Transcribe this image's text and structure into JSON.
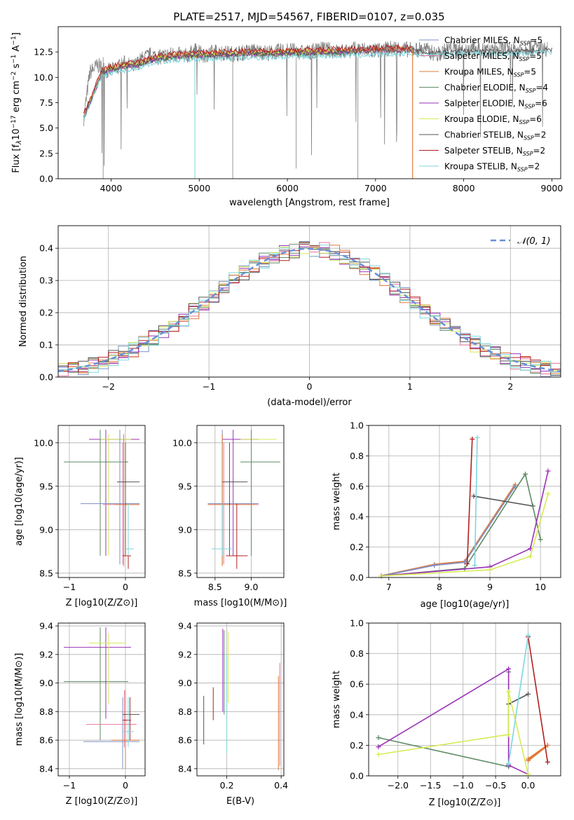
{
  "figure": {
    "title": "PLATE=2517, MJD=54567, FIBERID=0107, z=0.035"
  },
  "chart_data": [
    {
      "type": "line",
      "title": "PLATE=2517, MJD=54567, FIBERID=0107, z=0.035",
      "xlabel": "wavelength [Angstrom, rest frame]",
      "ylabel": "Flux [f_λ 10^-17 erg cm^-2 s^-1 A^-1]",
      "xlim": [
        3400,
        9100
      ],
      "ylim": [
        0,
        15
      ],
      "xticks": [
        "4000",
        "5000",
        "6000",
        "7000",
        "8000",
        "9000"
      ],
      "yticks": [
        "0.0",
        "2.5",
        "5.0",
        "7.5",
        "10.0",
        "12.5"
      ],
      "legend_position": "top-right",
      "data_spectrum": {
        "name": "",
        "x": [
          3690,
          3760,
          3850,
          3950,
          4050,
          4150,
          4250,
          4350,
          4450,
          4550,
          4700,
          4850,
          4950,
          5050,
          5200,
          5400,
          5600,
          5800,
          6000,
          6200,
          6400,
          6600,
          6800,
          7000,
          7200,
          7400,
          7550,
          7700,
          7850,
          8000,
          8150,
          8300,
          8450,
          8600,
          8800,
          8950
        ],
        "y": [
          6.0,
          10.5,
          11.2,
          10.6,
          10.8,
          11.4,
          11.0,
          11.8,
          12.2,
          12.0,
          12.3,
          12.1,
          12.6,
          12.2,
          12.5,
          12.3,
          12.6,
          12.4,
          12.7,
          12.4,
          12.8,
          12.5,
          12.8,
          12.6,
          12.9,
          12.7,
          12.8,
          12.2,
          12.9,
          12.6,
          12.9,
          12.5,
          12.9,
          12.7,
          13.0,
          12.8
        ]
      },
      "series": [
        {
          "name": "Chabrier MILES, N_SSP=5",
          "color": "#7b90c6",
          "x": [
            3690,
            3900,
            4100,
            4300,
            4500,
            4800,
            5100,
            5500,
            6000,
            6500,
            7000,
            7400
          ],
          "y": [
            6.1,
            10.5,
            11.0,
            11.2,
            11.8,
            12.1,
            12.2,
            12.3,
            12.4,
            12.5,
            12.6,
            12.7
          ]
        },
        {
          "name": "Salpeter MILES, N_SSP=5",
          "color": "#e6789e",
          "x": [
            3690,
            3900,
            4100,
            4300,
            4500,
            4800,
            5100,
            5500,
            6000,
            6500,
            7000,
            7400
          ],
          "y": [
            6.1,
            10.5,
            11.0,
            11.2,
            11.8,
            12.1,
            12.2,
            12.3,
            12.4,
            12.5,
            12.6,
            12.7
          ]
        },
        {
          "name": "Kroupa MILES, N_SSP=5",
          "color": "#e07b39",
          "x": [
            3690,
            3900,
            4100,
            4300,
            4500,
            4800,
            5100,
            5500,
            6000,
            6500,
            7000,
            7400
          ],
          "y": [
            6.2,
            10.6,
            11.1,
            11.3,
            11.9,
            12.2,
            12.3,
            12.4,
            12.5,
            12.6,
            12.7,
            12.8
          ]
        },
        {
          "name": "Chabrier ELODIE, N_SSP=4",
          "color": "#5e8b65",
          "x": [
            3690,
            3900,
            4100,
            4300,
            4500,
            4800,
            5100,
            5500,
            6000,
            6500,
            6790
          ],
          "y": [
            6.0,
            10.4,
            10.9,
            11.1,
            11.7,
            12.0,
            12.1,
            12.2,
            12.3,
            12.4,
            12.5
          ]
        },
        {
          "name": "Salpeter ELODIE, N_SSP=6",
          "color": "#9a32b8",
          "x": [
            3690,
            3900,
            4100,
            4300,
            4500,
            4800,
            5100,
            5500,
            6000,
            6500,
            6790
          ],
          "y": [
            6.0,
            10.5,
            11.0,
            11.2,
            11.8,
            12.1,
            12.2,
            12.3,
            12.4,
            12.5,
            12.6
          ]
        },
        {
          "name": "Kroupa ELODIE, N_SSP=6",
          "color": "#d7ea56",
          "x": [
            3690,
            3900,
            4100,
            4300,
            4500,
            4800,
            5100,
            5500,
            6000,
            6500,
            6790
          ],
          "y": [
            6.1,
            10.6,
            11.1,
            11.3,
            11.9,
            12.2,
            12.3,
            12.4,
            12.5,
            12.6,
            12.7
          ]
        },
        {
          "name": "Chabrier STELIB, N_SSP=2",
          "color": "#555555",
          "x": [
            3690,
            3900,
            4100,
            4300,
            4500,
            4800,
            5100,
            5500,
            6000,
            6500,
            7000,
            7400,
            7600,
            8000,
            8500,
            9000
          ],
          "y": [
            6.1,
            10.5,
            11.0,
            11.2,
            11.8,
            12.1,
            12.2,
            12.3,
            12.4,
            12.5,
            12.6,
            12.7,
            12.4,
            12.6,
            12.5,
            12.7
          ]
        },
        {
          "name": "Salpeter STELIB, N_SSP=2",
          "color": "#b02020",
          "x": [
            3690,
            3900,
            4100,
            4300,
            4500,
            4800,
            5100,
            5500,
            6000,
            6500,
            7000,
            7400
          ],
          "y": [
            6.3,
            10.8,
            11.3,
            11.5,
            12.1,
            12.4,
            12.5,
            12.6,
            12.7,
            12.8,
            12.9,
            13.0
          ]
        },
        {
          "name": "Kroupa STELIB, N_SSP=2",
          "color": "#7ed6de",
          "x": [
            3690,
            3900,
            4100,
            4300,
            4500,
            4800,
            5100,
            5500,
            6000,
            6500,
            7000,
            7400,
            7600,
            8000,
            8500,
            9000
          ],
          "y": [
            5.9,
            10.2,
            10.6,
            10.9,
            11.5,
            11.7,
            11.8,
            11.9,
            12.0,
            12.1,
            12.2,
            12.3,
            12.2,
            12.4,
            12.3,
            12.5
          ]
        }
      ]
    },
    {
      "type": "line",
      "title": "",
      "xlabel": "(data-model)/error",
      "ylabel": "Normed distribution",
      "xlim": [
        -2.5,
        2.5
      ],
      "ylim": [
        0,
        0.47
      ],
      "xticks": [
        "−2",
        "−1",
        "0",
        "1",
        "2"
      ],
      "yticks": [
        "0.0",
        "0.1",
        "0.2",
        "0.3",
        "0.4"
      ],
      "legend": "𝒩(0, 1)",
      "legend_position": "top-right",
      "grid": true
    },
    {
      "type": "scatter",
      "title": "",
      "xlabel": "Z [log10(Z/Z⊙)]",
      "ylabel": "age [log10(age/yr)]",
      "xlim": [
        -1.2,
        0.35
      ],
      "ylim": [
        8.45,
        10.2
      ],
      "xticks": [
        "−1",
        "0"
      ],
      "yticks": [
        "8.5",
        "9.0",
        "9.5",
        "10.0"
      ],
      "grid": true
    },
    {
      "type": "scatter",
      "title": "",
      "xlabel": "mass [log10(M/M⊙)]",
      "ylabel": "",
      "xlim": [
        8.25,
        9.45
      ],
      "ylim": [
        8.45,
        10.2
      ],
      "xticks": [
        "8.5",
        "9.0"
      ],
      "yticks": [
        "8.5",
        "9.0",
        "9.5",
        "10.0"
      ],
      "grid": true
    },
    {
      "type": "line",
      "title": "",
      "xlabel": "age [log10(age/yr)]",
      "ylabel": "mass weight",
      "xlim": [
        6.6,
        10.4
      ],
      "ylim": [
        0,
        1
      ],
      "xticks": [
        "7",
        "8",
        "9",
        "10"
      ],
      "yticks": [
        "0.0",
        "0.2",
        "0.4",
        "0.6",
        "0.8",
        "1.0"
      ],
      "grid": true,
      "series": [
        {
          "color": "#e07b39",
          "x": [
            6.85,
            7.9,
            8.5,
            9.5
          ],
          "y": [
            0.01,
            0.085,
            0.105,
            0.61
          ]
        },
        {
          "color": "#e6789e",
          "x": [
            6.85,
            7.9,
            8.5,
            9.5
          ],
          "y": [
            0.01,
            0.08,
            0.1,
            0.6
          ]
        },
        {
          "color": "#7b90c6",
          "x": [
            6.85,
            7.9,
            8.5,
            9.5
          ],
          "y": [
            0.01,
            0.08,
            0.1,
            0.6
          ]
        },
        {
          "color": "#555555",
          "x": [
            8.68,
            9.85
          ],
          "y": [
            0.535,
            0.47
          ]
        },
        {
          "color": "#5e8b65",
          "x": [
            6.85,
            8.5,
            9.7,
            10.0
          ],
          "y": [
            0.01,
            0.06,
            0.68,
            0.25
          ]
        },
        {
          "color": "#9a32b8",
          "x": [
            6.85,
            9.0,
            9.8,
            10.15
          ],
          "y": [
            0.01,
            0.07,
            0.19,
            0.7
          ]
        },
        {
          "color": "#d7ea56",
          "x": [
            6.85,
            9.0,
            9.8,
            10.15
          ],
          "y": [
            0.01,
            0.05,
            0.14,
            0.55
          ]
        },
        {
          "color": "#b02020",
          "x": [
            8.55,
            8.65
          ],
          "y": [
            0.09,
            0.91
          ]
        },
        {
          "color": "#7ed6de",
          "x": [
            8.7,
            8.75
          ],
          "y": [
            0.08,
            0.92
          ]
        }
      ]
    },
    {
      "type": "scatter",
      "title": "",
      "xlabel": "Z [log10(Z/Z⊙)]",
      "ylabel": "mass [log10(M/M⊙)]",
      "xlim": [
        -1.2,
        0.35
      ],
      "ylim": [
        8.35,
        9.42
      ],
      "xticks": [
        "−1",
        "0"
      ],
      "yticks": [
        "8.4",
        "8.6",
        "8.8",
        "9.0",
        "9.2",
        "9.4"
      ],
      "grid": true
    },
    {
      "type": "scatter",
      "title": "",
      "xlabel": "E(B-V)",
      "ylabel": "",
      "xlim": [
        0.09,
        0.41
      ],
      "ylim": [
        8.35,
        9.42
      ],
      "xticks": [
        "0.2",
        "0.4"
      ],
      "yticks": [
        "8.4",
        "8.6",
        "8.8",
        "9.0",
        "9.2",
        "9.4"
      ],
      "grid": true
    },
    {
      "type": "line",
      "title": "",
      "xlabel": "Z [log10(Z/Z⊙)]",
      "ylabel": "mass weight",
      "xlim": [
        -2.45,
        0.5
      ],
      "ylim": [
        0,
        1
      ],
      "xticks": [
        "−2.0",
        "−1.5",
        "−1.0",
        "−0.5",
        "0.0"
      ],
      "yticks": [
        "0.0",
        "0.2",
        "0.4",
        "0.6",
        "0.8",
        "1.0"
      ],
      "grid": true,
      "series": [
        {
          "color": "#e07b39",
          "x": [
            0.0,
            0.3,
            0.0
          ],
          "y": [
            0.1,
            0.2,
            0.11
          ]
        },
        {
          "color": "#555555",
          "x": [
            -0.3,
            0.0
          ],
          "y": [
            0.47,
            0.535
          ]
        },
        {
          "color": "#5e8b65",
          "x": [
            -2.3,
            -0.3,
            -0.3,
            -0.3
          ],
          "y": [
            0.25,
            0.06,
            0.68,
            0.08
          ]
        },
        {
          "color": "#9a32b8",
          "x": [
            -2.3,
            -0.3,
            -0.3,
            0.0
          ],
          "y": [
            0.19,
            0.7,
            0.07,
            0.01
          ]
        },
        {
          "color": "#d7ea56",
          "x": [
            -2.3,
            -0.3,
            -0.3,
            0.0
          ],
          "y": [
            0.14,
            0.27,
            0.55,
            0.01
          ]
        },
        {
          "color": "#b02020",
          "x": [
            0.0,
            0.3
          ],
          "y": [
            0.91,
            0.09
          ]
        },
        {
          "color": "#7ed6de",
          "x": [
            -0.3,
            0.0
          ],
          "y": [
            0.08,
            0.92
          ]
        }
      ]
    }
  ]
}
